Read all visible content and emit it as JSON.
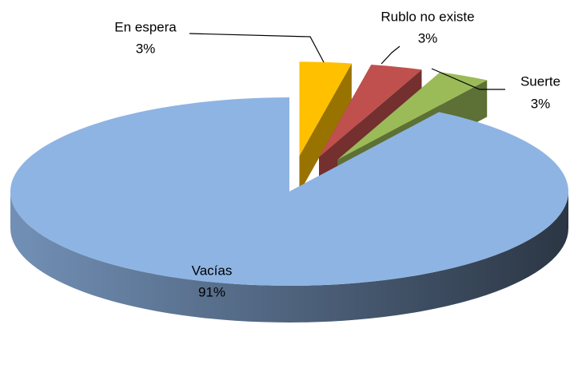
{
  "chart_data": {
    "type": "pie3d",
    "categories": [
      "En espera",
      "Rublo no existe",
      "Suerte",
      "Vacías"
    ],
    "values": [
      3,
      3,
      3,
      91
    ],
    "value_labels": [
      "3%",
      "3%",
      "3%",
      "91%"
    ],
    "colors": [
      "#ffc000",
      "#c0504d",
      "#9bbb59",
      "#8eb4e3"
    ]
  }
}
